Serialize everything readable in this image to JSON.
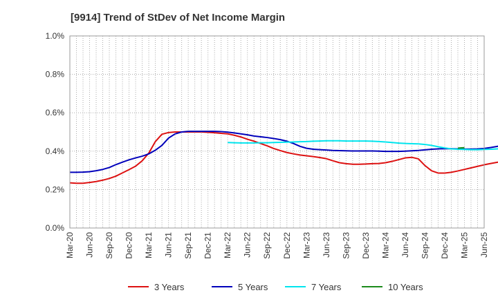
{
  "chart_data": {
    "type": "line",
    "title": "[9914]  Trend of StDev of Net Income Margin",
    "xlabel": "",
    "ylabel": "",
    "x_ticks": [
      "Mar-20",
      "Jun-20",
      "Sep-20",
      "Dec-20",
      "Mar-21",
      "Jun-21",
      "Sep-21",
      "Dec-21",
      "Mar-22",
      "Jun-22",
      "Sep-22",
      "Dec-22",
      "Mar-23",
      "Jun-23",
      "Sep-23",
      "Dec-23",
      "Mar-24",
      "Jun-24",
      "Sep-24",
      "Dec-24",
      "Mar-25",
      "Jun-25"
    ],
    "y_ticks": [
      "0.0%",
      "0.2%",
      "0.4%",
      "0.6%",
      "0.8%",
      "1.0%"
    ],
    "ylim": [
      0,
      1.0
    ],
    "y_unit": "%",
    "grid": true,
    "legend_position": "bottom",
    "colors": {
      "3 Years": "#dd1111",
      "5 Years": "#0000bb",
      "7 Years": "#00e5ee",
      "10 Years": "#1a8a1a"
    },
    "series": [
      {
        "name": "3 Years",
        "start": "Mar-20",
        "values": [
          0.235,
          0.233,
          0.233,
          0.237,
          0.242,
          0.249,
          0.258,
          0.27,
          0.287,
          0.304,
          0.322,
          0.35,
          0.39,
          0.45,
          0.488,
          0.497,
          0.5,
          0.5,
          0.5,
          0.5,
          0.5,
          0.498,
          0.496,
          0.493,
          0.49,
          0.483,
          0.474,
          0.462,
          0.452,
          0.44,
          0.428,
          0.414,
          0.403,
          0.393,
          0.386,
          0.38,
          0.376,
          0.372,
          0.367,
          0.361,
          0.35,
          0.34,
          0.335,
          0.332,
          0.332,
          0.333,
          0.335,
          0.336,
          0.34,
          0.347,
          0.356,
          0.365,
          0.368,
          0.36,
          0.325,
          0.298,
          0.286,
          0.286,
          0.29,
          0.297,
          0.305,
          0.313,
          0.321,
          0.329,
          0.336,
          0.342,
          0.346,
          0.348,
          0.35
        ]
      },
      {
        "name": "5 Years",
        "start": "Mar-20",
        "values": [
          0.29,
          0.29,
          0.291,
          0.293,
          0.298,
          0.305,
          0.315,
          0.33,
          0.343,
          0.355,
          0.365,
          0.374,
          0.386,
          0.405,
          0.43,
          0.468,
          0.49,
          0.5,
          0.503,
          0.503,
          0.503,
          0.503,
          0.503,
          0.502,
          0.499,
          0.495,
          0.49,
          0.485,
          0.479,
          0.475,
          0.471,
          0.466,
          0.46,
          0.452,
          0.44,
          0.425,
          0.415,
          0.41,
          0.408,
          0.406,
          0.404,
          0.403,
          0.402,
          0.401,
          0.401,
          0.401,
          0.401,
          0.4,
          0.399,
          0.399,
          0.399,
          0.4,
          0.402,
          0.404,
          0.407,
          0.41,
          0.412,
          0.413,
          0.413,
          0.412,
          0.411,
          0.411,
          0.412,
          0.414,
          0.419,
          0.425,
          0.431,
          0.436,
          0.44,
          0.443,
          0.445,
          0.445
        ]
      },
      {
        "name": "7 Years",
        "start": "Mar-22",
        "values": [
          0.445,
          0.444,
          0.443,
          0.443,
          0.443,
          0.444,
          0.444,
          0.445,
          0.446,
          0.447,
          0.448,
          0.449,
          0.45,
          0.452,
          0.453,
          0.454,
          0.454,
          0.454,
          0.453,
          0.453,
          0.453,
          0.453,
          0.452,
          0.45,
          0.448,
          0.445,
          0.442,
          0.44,
          0.439,
          0.438,
          0.435,
          0.43,
          0.423,
          0.417,
          0.412,
          0.41,
          0.409,
          0.408,
          0.408,
          0.409,
          0.41,
          0.412,
          0.414,
          0.416,
          0.416
        ]
      },
      {
        "name": "10 Years",
        "start": "Feb-25",
        "values": [
          0.416,
          0.418
        ]
      }
    ]
  }
}
